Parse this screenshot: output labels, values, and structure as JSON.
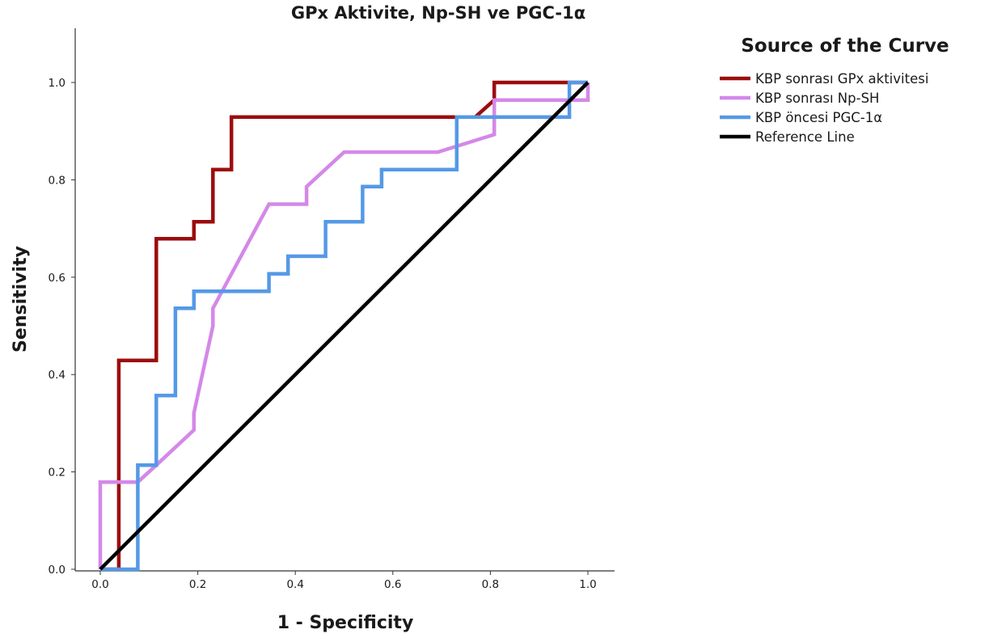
{
  "chart_data": {
    "type": "line",
    "title": "GPx Aktivite, Np-SH ve PGC-1α",
    "xlabel": "1 - Specificity",
    "ylabel": "Sensitivity",
    "xlim": [
      0.0,
      1.0
    ],
    "ylim": [
      0.0,
      1.0
    ],
    "x_ticks": [
      "0.0",
      "0.2",
      "0.4",
      "0.6",
      "0.8",
      "1.0"
    ],
    "y_ticks": [
      "0.0",
      "0.2",
      "0.4",
      "0.6",
      "0.8",
      "1.0"
    ],
    "grid": false,
    "legend": {
      "title": "Source of the Curve",
      "position": "top-right-outside"
    },
    "series": [
      {
        "name": "KBP sonrası GPx aktivitesi",
        "color": "#9b0d0d",
        "x": [
          0.0,
          0.038,
          0.038,
          0.115,
          0.115,
          0.192,
          0.192,
          0.231,
          0.231,
          0.269,
          0.269,
          0.769,
          0.808,
          0.808,
          1.0
        ],
        "y": [
          0.0,
          0.0,
          0.429,
          0.429,
          0.679,
          0.679,
          0.714,
          0.714,
          0.821,
          0.821,
          0.929,
          0.929,
          0.964,
          1.0,
          1.0
        ]
      },
      {
        "name": "KBP sonrası Np-SH",
        "color": "#d488e8",
        "x": [
          0.0,
          0.0,
          0.077,
          0.115,
          0.192,
          0.192,
          0.231,
          0.231,
          0.346,
          0.423,
          0.423,
          0.5,
          0.692,
          0.808,
          0.808,
          1.0,
          1.0
        ],
        "y": [
          0.0,
          0.179,
          0.179,
          0.214,
          0.286,
          0.321,
          0.5,
          0.536,
          0.75,
          0.75,
          0.786,
          0.857,
          0.857,
          0.893,
          0.964,
          0.964,
          1.0
        ]
      },
      {
        "name": "KBP öncesi PGC-1α",
        "color": "#5599e6",
        "x": [
          0.0,
          0.077,
          0.077,
          0.115,
          0.115,
          0.154,
          0.154,
          0.192,
          0.192,
          0.346,
          0.346,
          0.385,
          0.385,
          0.462,
          0.462,
          0.538,
          0.538,
          0.577,
          0.577,
          0.731,
          0.731,
          0.962,
          0.962,
          1.0
        ],
        "y": [
          0.0,
          0.0,
          0.214,
          0.214,
          0.357,
          0.357,
          0.536,
          0.536,
          0.571,
          0.571,
          0.607,
          0.607,
          0.643,
          0.643,
          0.714,
          0.714,
          0.786,
          0.786,
          0.821,
          0.821,
          0.929,
          0.929,
          1.0,
          1.0
        ]
      },
      {
        "name": "Reference Line",
        "color": "#000000",
        "x": [
          0.0,
          1.0
        ],
        "y": [
          0.0,
          1.0
        ]
      }
    ]
  }
}
